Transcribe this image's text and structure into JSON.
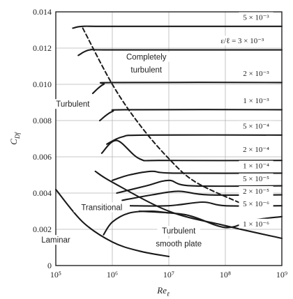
{
  "chart_data": {
    "type": "line",
    "xscale": "log",
    "xlim": [
      100000,
      1000000000
    ],
    "ylim": [
      0,
      0.014
    ],
    "xticks": [
      {
        "value": 100000,
        "label": "10⁵"
      },
      {
        "value": 1000000,
        "label": "10⁶"
      },
      {
        "value": 10000000,
        "label": "10⁷"
      },
      {
        "value": 100000000,
        "label": "10⁸"
      },
      {
        "value": 1000000000,
        "label": "10⁹"
      }
    ],
    "yticks": [
      {
        "value": 0,
        "label": "0"
      },
      {
        "value": 0.002,
        "label": "0.002"
      },
      {
        "value": 0.004,
        "label": "0.004"
      },
      {
        "value": 0.006,
        "label": "0.006"
      },
      {
        "value": 0.008,
        "label": "0.008"
      },
      {
        "value": 0.01,
        "label": "0.010"
      },
      {
        "value": 0.012,
        "label": "0.012"
      },
      {
        "value": 0.014,
        "label": "0.014"
      }
    ],
    "xlabel": "Re",
    "xlabel_sub": "ℓ",
    "ylabel": "C",
    "ylabel_sub": "Df",
    "grid": true,
    "series": [
      {
        "name": "5 × 10⁻³",
        "x": [
          200000,
          300000,
          1000000,
          1000000000
        ],
        "y": [
          0.0131,
          0.0132,
          0.0132,
          0.0132
        ]
      },
      {
        "name": "ε/ℓ = 3 × 10⁻³",
        "x": [
          250000,
          400000,
          1000000,
          1000000000
        ],
        "y": [
          0.0116,
          0.0119,
          0.0119,
          0.0119
        ]
      },
      {
        "name": "2 × 10⁻³",
        "x": [
          450000,
          700000,
          1200000,
          1000000000
        ],
        "y": [
          0.0095,
          0.01,
          0.0101,
          0.0101
        ]
      },
      {
        "name": "1 × 10⁻³",
        "x": [
          600000,
          1000000,
          2000000,
          1000000000
        ],
        "y": [
          0.008,
          0.0085,
          0.0086,
          0.0086
        ]
      },
      {
        "name": "5 × 10⁻⁴",
        "x": [
          800000,
          1500000,
          4000000,
          1000000000
        ],
        "y": [
          0.0067,
          0.0071,
          0.0072,
          0.0072
        ]
      },
      {
        "name": "2 × 10⁻⁴",
        "x": [
          650000,
          1200000,
          3000000,
          8000000,
          1000000000
        ],
        "y": [
          0.0062,
          0.0069,
          0.0059,
          0.0058,
          0.0058
        ]
      },
      {
        "name": "1 × 10⁻⁴",
        "x": [
          1000000,
          2000000,
          5000000,
          12000000,
          1000000000
        ],
        "y": [
          0.0047,
          0.005,
          0.0052,
          0.0051,
          0.0051
        ]
      },
      {
        "name": "5 × 10⁻⁵",
        "x": [
          1200000,
          4000000,
          10000000,
          25000000,
          1000000000
        ],
        "y": [
          0.004,
          0.0044,
          0.0047,
          0.0044,
          0.0044
        ]
      },
      {
        "name": "2 × 10⁻⁵",
        "x": [
          1500000,
          5000000,
          15000000,
          50000000,
          1000000000
        ],
        "y": [
          0.0036,
          0.0039,
          0.0041,
          0.0039,
          0.0039
        ]
      },
      {
        "name": "5 × 10⁻⁶",
        "x": [
          2000000,
          10000000,
          40000000,
          100000000,
          1000000000
        ],
        "y": [
          0.0033,
          0.0033,
          0.0035,
          0.0033,
          0.0033
        ]
      },
      {
        "name": "1 × 10⁻⁶",
        "x": [
          3000000,
          20000000,
          100000000,
          300000000,
          1000000000
        ],
        "y": [
          0.003,
          0.0028,
          0.0021,
          0.0025,
          0.0027
        ]
      },
      {
        "name": "Turbulent smooth plate",
        "x": [
          500000,
          1000000,
          10000000,
          100000000,
          1000000000
        ],
        "y": [
          0.0052,
          0.0046,
          0.003,
          0.0022,
          0.0015
        ]
      },
      {
        "name": "Transitional",
        "x": [
          700000,
          1000000,
          2000000,
          5000000,
          10000000
        ],
        "y": [
          0.0017,
          0.0024,
          0.0029,
          0.003,
          0.0029
        ]
      },
      {
        "name": "Laminar",
        "x": [
          100000,
          300000,
          1000000,
          3000000,
          10000000
        ],
        "y": [
          0.0042,
          0.0024,
          0.0013,
          0.0008,
          0.0005
        ]
      },
      {
        "name": "Completely turbulent boundary",
        "x": [
          300000,
          1000000,
          3000000,
          10000000,
          30000000,
          200000000
        ],
        "y": [
          0.0131,
          0.01,
          0.0078,
          0.0059,
          0.0046,
          0.0034
        ]
      }
    ],
    "curve_labels": [
      {
        "text": "5 × 10⁻³",
        "x": 350000000,
        "y": 0.0136
      },
      {
        "text": "ε/ℓ = 3 × 10⁻³",
        "x": 200000000,
        "y": 0.0123
      },
      {
        "text": "2 × 10⁻³",
        "x": 350000000,
        "y": 0.0105
      },
      {
        "text": "1 × 10⁻³",
        "x": 350000000,
        "y": 0.009
      },
      {
        "text": "5 × 10⁻⁴",
        "x": 350000000,
        "y": 0.0076
      },
      {
        "text": "2 × 10⁻⁴",
        "x": 350000000,
        "y": 0.0063
      },
      {
        "text": "1 × 10⁻⁴",
        "x": 350000000,
        "y": 0.0054
      },
      {
        "text": "5 × 10⁻⁵",
        "x": 350000000,
        "y": 0.0047
      },
      {
        "text": "2 × 10⁻⁵",
        "x": 350000000,
        "y": 0.004
      },
      {
        "text": "5 × 10⁻⁶",
        "x": 350000000,
        "y": 0.0033
      },
      {
        "text": "1 × 10⁻⁶",
        "x": 350000000,
        "y": 0.0022
      }
    ],
    "region_labels": [
      {
        "text": "Completely",
        "x": 4000000,
        "y": 0.0114
      },
      {
        "text": "turbulent",
        "x": 4000000,
        "y": 0.0107
      },
      {
        "text": "Turbulent",
        "x": 200000,
        "y": 0.0088
      },
      {
        "text": "Transitional",
        "x": 650000,
        "y": 0.0031
      },
      {
        "text": "Laminar",
        "x": 100000,
        "y": 0.0013
      },
      {
        "text": "Turbulent",
        "x": 15000000,
        "y": 0.0018
      },
      {
        "text": "smooth plate",
        "x": 15000000,
        "y": 0.0011
      }
    ]
  }
}
